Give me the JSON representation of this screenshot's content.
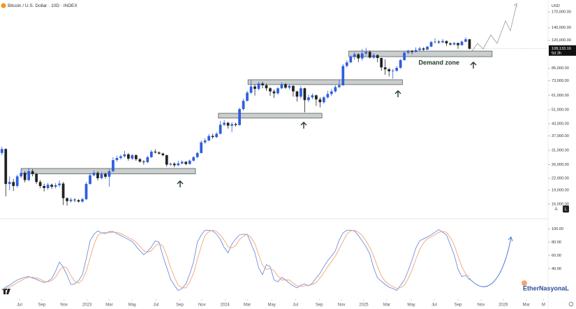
{
  "chart_data": [
    {
      "type": "candlestick",
      "title": "Bitcoin / U.S. Dollar · 10D · INDEX",
      "currency": "USD",
      "up_color": "#2e5ee0",
      "down_color": "#222222",
      "open": [
        30000,
        31500,
        20500,
        21000,
        20000,
        22500,
        23500,
        21500,
        24000,
        23200,
        21000,
        20000,
        19500,
        20300,
        19800,
        20200,
        20600,
        17200,
        16600,
        16900,
        16800,
        16500,
        17000,
        20500,
        22800,
        23500,
        22000,
        23200,
        22400,
        24000,
        27500,
        28200,
        28800,
        29500,
        28000,
        29200,
        27800,
        27000,
        26800,
        28500,
        30500,
        30200,
        29800,
        29200,
        26000,
        26300,
        25800,
        26400,
        26900,
        26200,
        27300,
        28500,
        30000,
        34200,
        35000,
        37000,
        36500,
        38000,
        42500,
        43500,
        42000,
        42800,
        42300,
        51500,
        57000,
        63000,
        68000,
        66000,
        70500,
        69000,
        66500,
        64000,
        62500,
        66500,
        70000,
        67000,
        68500,
        64000,
        60000,
        66500,
        57500,
        59500,
        61000,
        58000,
        56000,
        59500,
        62000,
        64000,
        67500,
        69000,
        87500,
        91500,
        98000,
        101000,
        96000,
        102000,
        104000,
        97000,
        100000,
        96500,
        86000,
        84000,
        82000,
        82500,
        85500,
        94000,
        103000,
        105500,
        104000,
        106500,
        108500,
        107000,
        111000,
        117500,
        118000,
        117000,
        119000,
        115500,
        114000,
        116000,
        113000,
        118000,
        121500
      ],
      "high": [
        32400,
        31800,
        22500,
        21800,
        23000,
        24500,
        24000,
        25000,
        24600,
        23500,
        21500,
        20600,
        20800,
        20600,
        20700,
        21400,
        21000,
        17400,
        17300,
        17200,
        17000,
        17300,
        21000,
        23400,
        24200,
        24000,
        23800,
        23600,
        24600,
        28500,
        29000,
        29400,
        30800,
        30000,
        29600,
        29500,
        28200,
        27500,
        29000,
        31200,
        31400,
        30600,
        30100,
        29400,
        26600,
        26800,
        27300,
        27400,
        27200,
        27700,
        28900,
        30500,
        35000,
        35900,
        37900,
        38000,
        38800,
        44500,
        45000,
        44000,
        43800,
        43600,
        52500,
        58500,
        64500,
        73500,
        69500,
        72000,
        72000,
        70500,
        67500,
        65500,
        67500,
        71500,
        70800,
        69500,
        69000,
        64500,
        68500,
        67000,
        61500,
        62500,
        61500,
        59500,
        60500,
        64500,
        66000,
        69000,
        73500,
        89500,
        94000,
        99500,
        104000,
        102500,
        108000,
        109500,
        106000,
        102500,
        101000,
        97000,
        95000,
        85500,
        84500,
        87500,
        95500,
        104500,
        107000,
        106500,
        110000,
        111000,
        110000,
        112000,
        119000,
        123000,
        120000,
        122000,
        119500,
        117000,
        117500,
        116500,
        119500,
        124500,
        122000
      ],
      "low": [
        29200,
        17600,
        19000,
        18800,
        19600,
        22000,
        20900,
        21200,
        22500,
        20500,
        19500,
        18700,
        19100,
        19300,
        19400,
        19700,
        15800,
        15700,
        16300,
        16400,
        16300,
        16300,
        16800,
        20300,
        22500,
        21400,
        21700,
        21900,
        19800,
        23700,
        27000,
        27700,
        28400,
        27300,
        27600,
        27200,
        26600,
        26000,
        26500,
        28200,
        29800,
        29400,
        28800,
        25400,
        25600,
        25200,
        25500,
        26100,
        25800,
        26000,
        27000,
        28200,
        29800,
        33600,
        34600,
        35800,
        36000,
        37700,
        41800,
        40500,
        38700,
        41500,
        42000,
        50500,
        56500,
        62000,
        60800,
        65000,
        66500,
        64500,
        60500,
        59000,
        61500,
        65800,
        66000,
        65500,
        60000,
        56500,
        58500,
        49500,
        56200,
        58200,
        53500,
        52600,
        55000,
        58500,
        60500,
        63000,
        66500,
        68500,
        86000,
        90500,
        94500,
        92000,
        93500,
        99500,
        96000,
        95500,
        91500,
        82500,
        78500,
        77000,
        74800,
        81500,
        84500,
        93500,
        101500,
        101000,
        103500,
        105000,
        105500,
        106500,
        110500,
        115500,
        115000,
        116000,
        112000,
        112500,
        113000,
        108000,
        112500,
        117000,
        107300
      ],
      "close": [
        31500,
        20500,
        21000,
        20000,
        22500,
        23500,
        21500,
        24000,
        23200,
        21000,
        20000,
        19500,
        20300,
        19800,
        20200,
        20600,
        17200,
        16600,
        16900,
        16800,
        16500,
        17000,
        20500,
        22800,
        23500,
        22000,
        23200,
        22400,
        24000,
        27500,
        28200,
        28800,
        29500,
        28000,
        29200,
        27800,
        27000,
        26800,
        28500,
        30500,
        30200,
        29800,
        29200,
        26000,
        26300,
        25800,
        26400,
        26900,
        26200,
        27300,
        28500,
        30000,
        34200,
        35000,
        37000,
        36500,
        38000,
        42500,
        43500,
        42000,
        42800,
        42300,
        51500,
        57000,
        63000,
        68000,
        66000,
        70500,
        69000,
        66500,
        64000,
        62500,
        66500,
        70000,
        67000,
        68500,
        64000,
        60000,
        66500,
        57500,
        59500,
        61000,
        58000,
        56000,
        59500,
        62000,
        64000,
        67500,
        69000,
        87500,
        91500,
        98000,
        101000,
        96000,
        102000,
        104000,
        97000,
        100000,
        96500,
        86000,
        84000,
        82000,
        82500,
        85500,
        94000,
        103000,
        105500,
        104000,
        106500,
        108500,
        107000,
        111000,
        117500,
        118000,
        117000,
        119000,
        115500,
        114000,
        116000,
        113000,
        118000,
        121500,
        108133.16
      ],
      "xlim": [
        0,
        143
      ],
      "xticks": [
        {
          "value": 5.1,
          "label": "Jul"
        },
        {
          "value": 10.9,
          "label": "Sep"
        },
        {
          "value": 16.7,
          "label": "Nov"
        },
        {
          "value": 22.7,
          "label": "2023"
        },
        {
          "value": 28.5,
          "label": "Mar"
        },
        {
          "value": 34.5,
          "label": "May"
        },
        {
          "value": 40.7,
          "label": "Jul"
        },
        {
          "value": 46.9,
          "label": "Sep"
        },
        {
          "value": 52.7,
          "label": "Nov"
        },
        {
          "value": 58.7,
          "label": "2024"
        },
        {
          "value": 64.5,
          "label": "Mar"
        },
        {
          "value": 70.9,
          "label": "May"
        },
        {
          "value": 77.1,
          "label": "Jul"
        },
        {
          "value": 83.3,
          "label": "Sep"
        },
        {
          "value": 89.1,
          "label": "Nov"
        },
        {
          "value": 94.9,
          "label": "2025"
        },
        {
          "value": 100.9,
          "label": "Mar"
        },
        {
          "value": 107.3,
          "label": "May"
        },
        {
          "value": 113.3,
          "label": "Jul"
        },
        {
          "value": 119.5,
          "label": "Sep"
        },
        {
          "value": 125.5,
          "label": "Nov"
        },
        {
          "value": 131.3,
          "label": "2026"
        },
        {
          "value": 137.3,
          "label": "Mar"
        },
        {
          "value": 141.8,
          "label": "M"
        }
      ],
      "ylim": [
        13700,
        197000
      ],
      "log_scale": true,
      "yticks": [
        {
          "value": 170000,
          "label": "170,000.00"
        },
        {
          "value": 140000,
          "label": "140,000.00"
        },
        {
          "value": 120000,
          "label": "120,000.00"
        },
        {
          "value": 85000,
          "label": "85,000.00"
        },
        {
          "value": 73000,
          "label": "73,000.00"
        },
        {
          "value": 61000,
          "label": "61,000.00"
        },
        {
          "value": 51000,
          "label": "51,000.00"
        },
        {
          "value": 43000,
          "label": "43,000.00"
        },
        {
          "value": 37000,
          "label": "37,000.00"
        },
        {
          "value": 31000,
          "label": "31,000.00"
        },
        {
          "value": 26000,
          "label": "26,000.00"
        },
        {
          "value": 22000,
          "label": "22,000.00"
        },
        {
          "value": 19000,
          "label": "19,000.00"
        },
        {
          "value": 16000,
          "label": "16,000.00"
        }
      ],
      "last_price": {
        "value": 108133.16,
        "label": "108,133.16"
      },
      "countdown": "5d 3h",
      "zones": [
        {
          "from": 5.5,
          "to": 51,
          "low": 23200,
          "high": 24800
        },
        {
          "from": 57,
          "to": 84,
          "low": 46100,
          "high": 48900
        },
        {
          "from": 64.7,
          "to": 105,
          "low": 69600,
          "high": 73900
        },
        {
          "from": 91,
          "to": 128.4,
          "low": 98100,
          "high": 105100
        }
      ],
      "zone_color": "#c9cfcf",
      "zone_label": "Demand zone"
    },
    {
      "type": "line",
      "xlim": [
        0,
        143
      ],
      "ylim": [
        -3,
        110
      ],
      "yticks": [
        {
          "value": 100,
          "label": "100.00"
        },
        {
          "value": 80,
          "label": "80.00"
        },
        {
          "value": 60,
          "label": "60.00"
        },
        {
          "value": 40,
          "label": "40.00"
        }
      ],
      "series": [
        {
          "color": "#6d8fe0",
          "values": [
            8,
            12,
            15,
            19,
            23,
            25,
            27,
            28,
            26,
            24,
            21,
            19,
            21,
            25,
            36,
            50,
            42,
            30,
            16,
            17,
            22,
            31,
            55,
            82,
            92,
            97,
            94,
            93,
            96,
            96,
            93,
            90,
            87,
            84,
            81,
            74,
            67,
            61,
            66,
            73,
            82,
            80,
            59,
            42,
            24,
            15,
            7,
            10,
            17,
            32,
            50,
            80,
            91,
            98,
            98,
            97,
            92,
            84,
            72,
            64,
            77,
            85,
            91,
            92,
            92,
            78,
            64,
            41,
            31,
            46,
            43,
            23,
            20,
            27,
            23,
            18,
            14,
            11,
            15,
            17,
            14,
            18,
            26,
            33,
            43,
            52,
            59,
            67,
            83,
            94,
            98,
            98,
            97,
            90,
            82,
            73,
            62,
            41,
            26,
            21,
            16,
            12,
            10,
            7,
            15,
            23,
            37,
            53,
            71,
            82,
            85,
            88,
            91,
            95,
            99,
            95,
            91,
            76,
            61,
            39,
            28,
            30,
            23
          ]
        },
        {
          "color": "#f2a474",
          "values": [
            9,
            10,
            12,
            15,
            19,
            22,
            25,
            27,
            27,
            26,
            24,
            21,
            20,
            22,
            27,
            37,
            43,
            41,
            29,
            21,
            18,
            23,
            36,
            56,
            76,
            90,
            94,
            95,
            94,
            95,
            95,
            93,
            90,
            87,
            84,
            80,
            74,
            67,
            65,
            67,
            74,
            78,
            74,
            60,
            42,
            27,
            15,
            11,
            11,
            20,
            33,
            54,
            74,
            90,
            96,
            98,
            96,
            91,
            83,
            73,
            71,
            75,
            84,
            89,
            92,
            87,
            78,
            61,
            45,
            39,
            40,
            37,
            29,
            23,
            23,
            23,
            18,
            14,
            13,
            14,
            15,
            16,
            19,
            26,
            34,
            43,
            51,
            59,
            70,
            81,
            92,
            97,
            98,
            95,
            90,
            82,
            72,
            59,
            43,
            29,
            21,
            16,
            13,
            10,
            11,
            15,
            25,
            38,
            54,
            69,
            79,
            85,
            88,
            91,
            95,
            96,
            95,
            87,
            76,
            59,
            43,
            32,
            27
          ]
        }
      ]
    }
  ],
  "buttons": [
    "A",
    "L"
  ],
  "watermark": "EtherNasyonaL"
}
